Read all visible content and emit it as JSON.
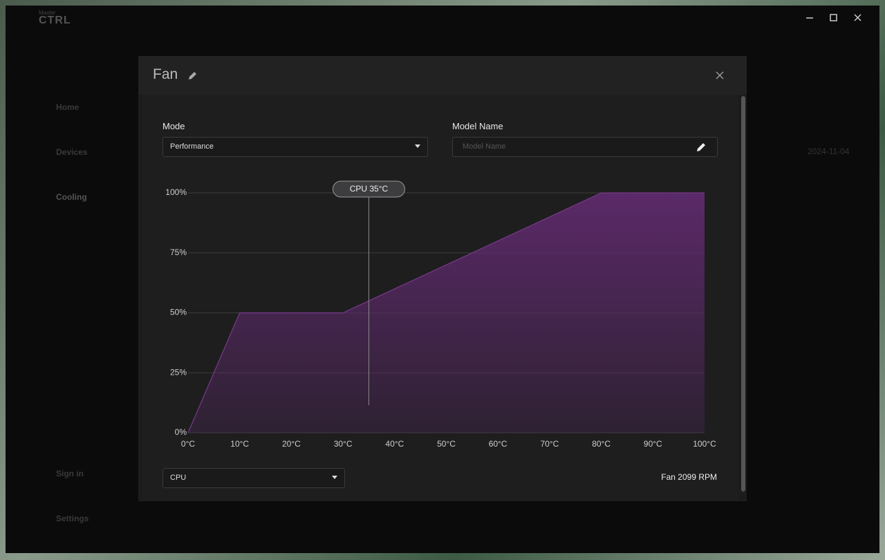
{
  "app": {
    "logo": "CTRL",
    "logo_small": "Master",
    "sidebar": [
      "Home",
      "Devices",
      "Cooling",
      "Sign in",
      "Settings"
    ],
    "date": "2024-11-04"
  },
  "dialog": {
    "title": "Fan",
    "mode_label": "Mode",
    "mode_value": "Performance",
    "model_label": "Model Name",
    "model_placeholder": "Model Name",
    "source_value": "CPU",
    "status": "Fan 2099 RPM"
  },
  "chart_data": {
    "type": "area",
    "x": [
      0,
      10,
      30,
      80,
      100
    ],
    "values": [
      0,
      50,
      50,
      100,
      100
    ],
    "color": "#5e2a6c",
    "line_color": "#7a3a8a",
    "xlim": [
      0,
      100
    ],
    "ylim": [
      0,
      100
    ],
    "xticks": [
      {
        "value": 0,
        "label": "0°C"
      },
      {
        "value": 10,
        "label": "10°C"
      },
      {
        "value": 20,
        "label": "20°C"
      },
      {
        "value": 30,
        "label": "30°C"
      },
      {
        "value": 40,
        "label": "40°C"
      },
      {
        "value": 50,
        "label": "50°C"
      },
      {
        "value": 60,
        "label": "60°C"
      },
      {
        "value": 70,
        "label": "70°C"
      },
      {
        "value": 80,
        "label": "80°C"
      },
      {
        "value": 90,
        "label": "90°C"
      },
      {
        "value": 100,
        "label": "100°C"
      }
    ],
    "yticks": [
      {
        "value": 0,
        "label": "0%"
      },
      {
        "value": 25,
        "label": "25%"
      },
      {
        "value": 50,
        "label": "50%"
      },
      {
        "value": 75,
        "label": "75%"
      },
      {
        "value": 100,
        "label": "100%"
      }
    ],
    "grid": true,
    "annotations": [
      {
        "x": 35,
        "label": "CPU 35°C"
      }
    ]
  }
}
